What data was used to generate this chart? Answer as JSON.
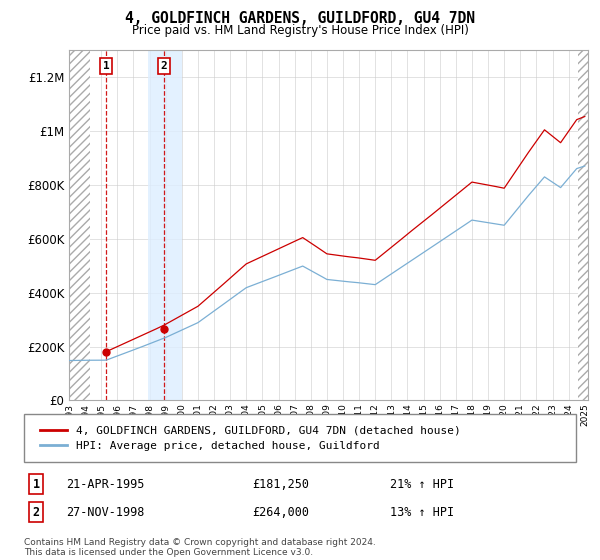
{
  "title": "4, GOLDFINCH GARDENS, GUILDFORD, GU4 7DN",
  "subtitle": "Price paid vs. HM Land Registry's House Price Index (HPI)",
  "footer": "Contains HM Land Registry data © Crown copyright and database right 2024.\nThis data is licensed under the Open Government Licence v3.0.",
  "legend_line1": "4, GOLDFINCH GARDENS, GUILDFORD, GU4 7DN (detached house)",
  "legend_line2": "HPI: Average price, detached house, Guildford",
  "sale1_date": "21-APR-1995",
  "sale1_price": 181250,
  "sale1_pct": "21% ↑ HPI",
  "sale2_date": "27-NOV-1998",
  "sale2_price": 264000,
  "sale2_pct": "13% ↑ HPI",
  "sale1_year": 1995.3,
  "sale2_year": 1998.9,
  "ylim": [
    0,
    1300000
  ],
  "yticks": [
    0,
    200000,
    400000,
    600000,
    800000,
    1000000,
    1200000
  ],
  "ytick_labels": [
    "£0",
    "£200K",
    "£400K",
    "£600K",
    "£800K",
    "£1M",
    "£1.2M"
  ],
  "hpi_color": "#7bafd4",
  "price_color": "#cc0000",
  "grid_color": "#cccccc"
}
